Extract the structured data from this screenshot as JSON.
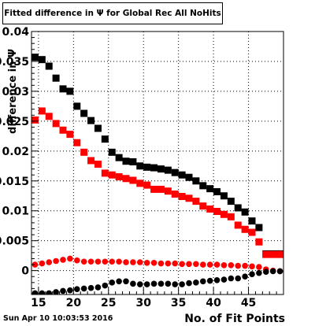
{
  "chart_data": {
    "type": "scatter",
    "title": "Fitted difference in Ψ  for Global Rec All NoHits",
    "xlabel": "No. of Fit Points",
    "ylabel": "difference in Ψ",
    "xlim": [
      14,
      50
    ],
    "ylim": [
      -0.004,
      0.04
    ],
    "x_ticks": [
      15,
      20,
      25,
      30,
      35,
      40,
      45
    ],
    "y_ticks": [
      0,
      0.005,
      0.01,
      0.015,
      0.02,
      0.025,
      0.03,
      0.035,
      0.04
    ],
    "y_tick_labels": [
      "0",
      "0.005",
      "0.01",
      "0.015",
      "0.02",
      "0.025",
      "0.03",
      "0.035",
      "0.04"
    ],
    "grid": true,
    "series": [
      {
        "color": "#000000",
        "marker": "square",
        "x": [
          14.5,
          15.5,
          16.5,
          17.5,
          18.5,
          19.5,
          20.5,
          21.5,
          22.5,
          23.5,
          24.5,
          25.5,
          26.5,
          27.5,
          28.5,
          29.5,
          30.5,
          31.5,
          32.5,
          33.5,
          34.5,
          35.5,
          36.5,
          37.5,
          38.5,
          39.5,
          40.5,
          41.5,
          42.5,
          43.5,
          44.5,
          45.5,
          46.5,
          47.5,
          48.5,
          49.5
        ],
        "y": [
          0.0357,
          0.0353,
          0.0342,
          0.0322,
          0.0304,
          0.03,
          0.0275,
          0.0263,
          0.0251,
          0.0238,
          0.022,
          0.0198,
          0.0189,
          0.0183,
          0.0182,
          0.0175,
          0.0173,
          0.0172,
          0.017,
          0.0168,
          0.0164,
          0.016,
          0.0156,
          0.015,
          0.0142,
          0.0137,
          0.0132,
          0.0125,
          0.0116,
          0.0105,
          0.0098,
          0.0083,
          0.0072,
          0.0028,
          0.0028,
          0.0028
        ]
      },
      {
        "color": "#ff0000",
        "marker": "square",
        "x": [
          14.5,
          15.5,
          16.5,
          17.5,
          18.5,
          19.5,
          20.5,
          21.5,
          22.5,
          23.5,
          24.5,
          25.5,
          26.5,
          27.5,
          28.5,
          29.5,
          30.5,
          31.5,
          32.5,
          33.5,
          34.5,
          35.5,
          36.5,
          37.5,
          38.5,
          39.5,
          40.5,
          41.5,
          42.5,
          43.5,
          44.5,
          45.5,
          46.5,
          47.5,
          48.5,
          49.5
        ],
        "y": [
          0.0252,
          0.0267,
          0.0258,
          0.0246,
          0.0235,
          0.0228,
          0.0214,
          0.0198,
          0.0184,
          0.0178,
          0.0163,
          0.016,
          0.0157,
          0.0154,
          0.0151,
          0.0146,
          0.0143,
          0.0136,
          0.0136,
          0.0133,
          0.0128,
          0.0124,
          0.0121,
          0.0116,
          0.0108,
          0.0103,
          0.0099,
          0.0094,
          0.009,
          0.0076,
          0.0069,
          0.0064,
          0.0048,
          0.0027,
          0.0027,
          0.0027
        ]
      },
      {
        "color": "#ff0000",
        "marker": "circle",
        "x": [
          14.5,
          15.5,
          16.5,
          17.5,
          18.5,
          19.5,
          20.5,
          21.5,
          22.5,
          23.5,
          24.5,
          25.5,
          26.5,
          27.5,
          28.5,
          29.5,
          30.5,
          31.5,
          32.5,
          33.5,
          34.5,
          35.5,
          36.5,
          37.5,
          38.5,
          39.5,
          40.5,
          41.5,
          42.5,
          43.5,
          44.5,
          45.5,
          46.5,
          47.5,
          48.5,
          49.5
        ],
        "y": [
          0.001,
          0.0012,
          0.0014,
          0.0016,
          0.0018,
          0.002,
          0.0017,
          0.0015,
          0.0015,
          0.0015,
          0.0015,
          0.0015,
          0.0015,
          0.0014,
          0.0014,
          0.0014,
          0.0013,
          0.0013,
          0.0012,
          0.0012,
          0.0012,
          0.0011,
          0.0011,
          0.0011,
          0.001,
          0.001,
          0.001,
          0.0009,
          0.0009,
          0.0008,
          0.0008,
          0.0007,
          0.0006,
          0.0002,
          0.0,
          -0.0001
        ]
      },
      {
        "color": "#000000",
        "marker": "circle",
        "x": [
          14.5,
          15.5,
          16.5,
          17.5,
          18.5,
          19.5,
          20.5,
          21.5,
          22.5,
          23.5,
          24.5,
          25.5,
          26.5,
          27.5,
          28.5,
          29.5,
          30.5,
          31.5,
          32.5,
          33.5,
          34.5,
          35.5,
          36.5,
          37.5,
          38.5,
          39.5,
          40.5,
          41.5,
          42.5,
          43.5,
          44.5,
          45.5,
          46.5,
          47.5,
          48.5,
          49.5
        ],
        "y": [
          -0.0038,
          -0.0038,
          -0.0038,
          -0.0036,
          -0.0034,
          -0.0033,
          -0.0031,
          -0.003,
          -0.0029,
          -0.0028,
          -0.0025,
          -0.002,
          -0.0018,
          -0.0018,
          -0.0022,
          -0.0023,
          -0.0023,
          -0.0022,
          -0.0022,
          -0.0022,
          -0.0023,
          -0.0023,
          -0.0021,
          -0.002,
          -0.0018,
          -0.0017,
          -0.0016,
          -0.0015,
          -0.0013,
          -0.0013,
          -0.001,
          -0.0006,
          -0.0004,
          -0.0002,
          -0.0001,
          -0.0001
        ]
      }
    ]
  },
  "footer": {
    "timestamp": "Sun Apr 10 10:03:53 2016"
  }
}
